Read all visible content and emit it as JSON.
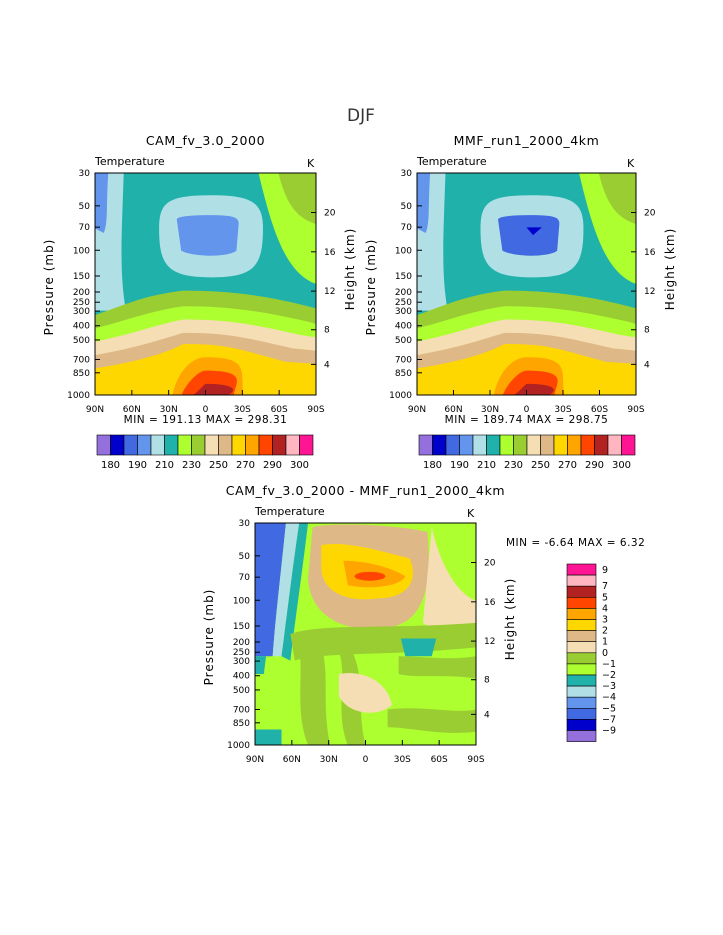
{
  "page_title": "DJF",
  "colors": {
    "abs": [
      "#9370db",
      "#0000cd",
      "#4169e1",
      "#6495ed",
      "#b0e0e6",
      "#20b2aa",
      "#adff2f",
      "#9acd32",
      "#f5deb3",
      "#deb887",
      "#ffd700",
      "#ffa500",
      "#ff4500",
      "#b22222",
      "#ffb6c1",
      "#ff1493"
    ],
    "diff": [
      "#9370db",
      "#0000cd",
      "#4169e1",
      "#6495ed",
      "#b0e0e6",
      "#20b2aa",
      "#adff2f",
      "#9acd32",
      "#f5deb3",
      "#deb887",
      "#ffd700",
      "#ffa500",
      "#ff4500",
      "#b22222",
      "#ffb6c1",
      "#ff1493"
    ]
  },
  "chart_data": [
    {
      "type": "heatmap",
      "title": "CAM_fv_3.0_2000",
      "subtitle_left": "Temperature",
      "subtitle_right": "K",
      "ylabel": "Pressure (mb)",
      "ylabel_right": "Height (km)",
      "x_ticks": [
        "90N",
        "60N",
        "30N",
        "0",
        "30S",
        "60S",
        "90S"
      ],
      "y_ticks": [
        "30",
        "50",
        "70",
        "100",
        "150",
        "200",
        "250",
        "300",
        "400",
        "500",
        "700",
        "850",
        "1000"
      ],
      "y_ticks_right": [
        "20",
        "16",
        "12",
        "8",
        "4"
      ],
      "min_max": "MIN = 191.13   MAX = 298.31",
      "colorbar_labels": [
        "180",
        "190",
        "210",
        "230",
        "250",
        "270",
        "290",
        "300"
      ]
    },
    {
      "type": "heatmap",
      "title": "MMF_run1_2000_4km",
      "subtitle_left": "Temperature",
      "subtitle_right": "K",
      "ylabel": "Pressure (mb)",
      "ylabel_right": "Height (km)",
      "x_ticks": [
        "90N",
        "60N",
        "30N",
        "0",
        "30S",
        "60S",
        "90S"
      ],
      "y_ticks": [
        "30",
        "50",
        "70",
        "100",
        "150",
        "200",
        "250",
        "300",
        "400",
        "500",
        "700",
        "850",
        "1000"
      ],
      "y_ticks_right": [
        "20",
        "16",
        "12",
        "8",
        "4"
      ],
      "min_max": "MIN = 189.74   MAX = 298.75",
      "colorbar_labels": [
        "180",
        "190",
        "210",
        "230",
        "250",
        "270",
        "290",
        "300"
      ]
    },
    {
      "type": "heatmap",
      "title": "CAM_fv_3.0_2000 - MMF_run1_2000_4km",
      "subtitle_left": "Temperature",
      "subtitle_right": "K",
      "ylabel": "Pressure (mb)",
      "ylabel_right": "Height (km)",
      "x_ticks": [
        "90N",
        "60N",
        "30N",
        "0",
        "30S",
        "60S",
        "90S"
      ],
      "y_ticks": [
        "30",
        "50",
        "70",
        "100",
        "150",
        "200",
        "250",
        "300",
        "400",
        "500",
        "700",
        "850",
        "1000"
      ],
      "y_ticks_right": [
        "20",
        "16",
        "12",
        "8",
        "4"
      ],
      "min_max": "MIN =  -6.64   MAX =   6.32",
      "colorbar_labels": [
        "9",
        "7",
        "5",
        "4",
        "3",
        "2",
        "1",
        "0",
        "-1",
        "-2",
        "-3",
        "-4",
        "-5",
        "-7",
        "-9"
      ]
    }
  ]
}
